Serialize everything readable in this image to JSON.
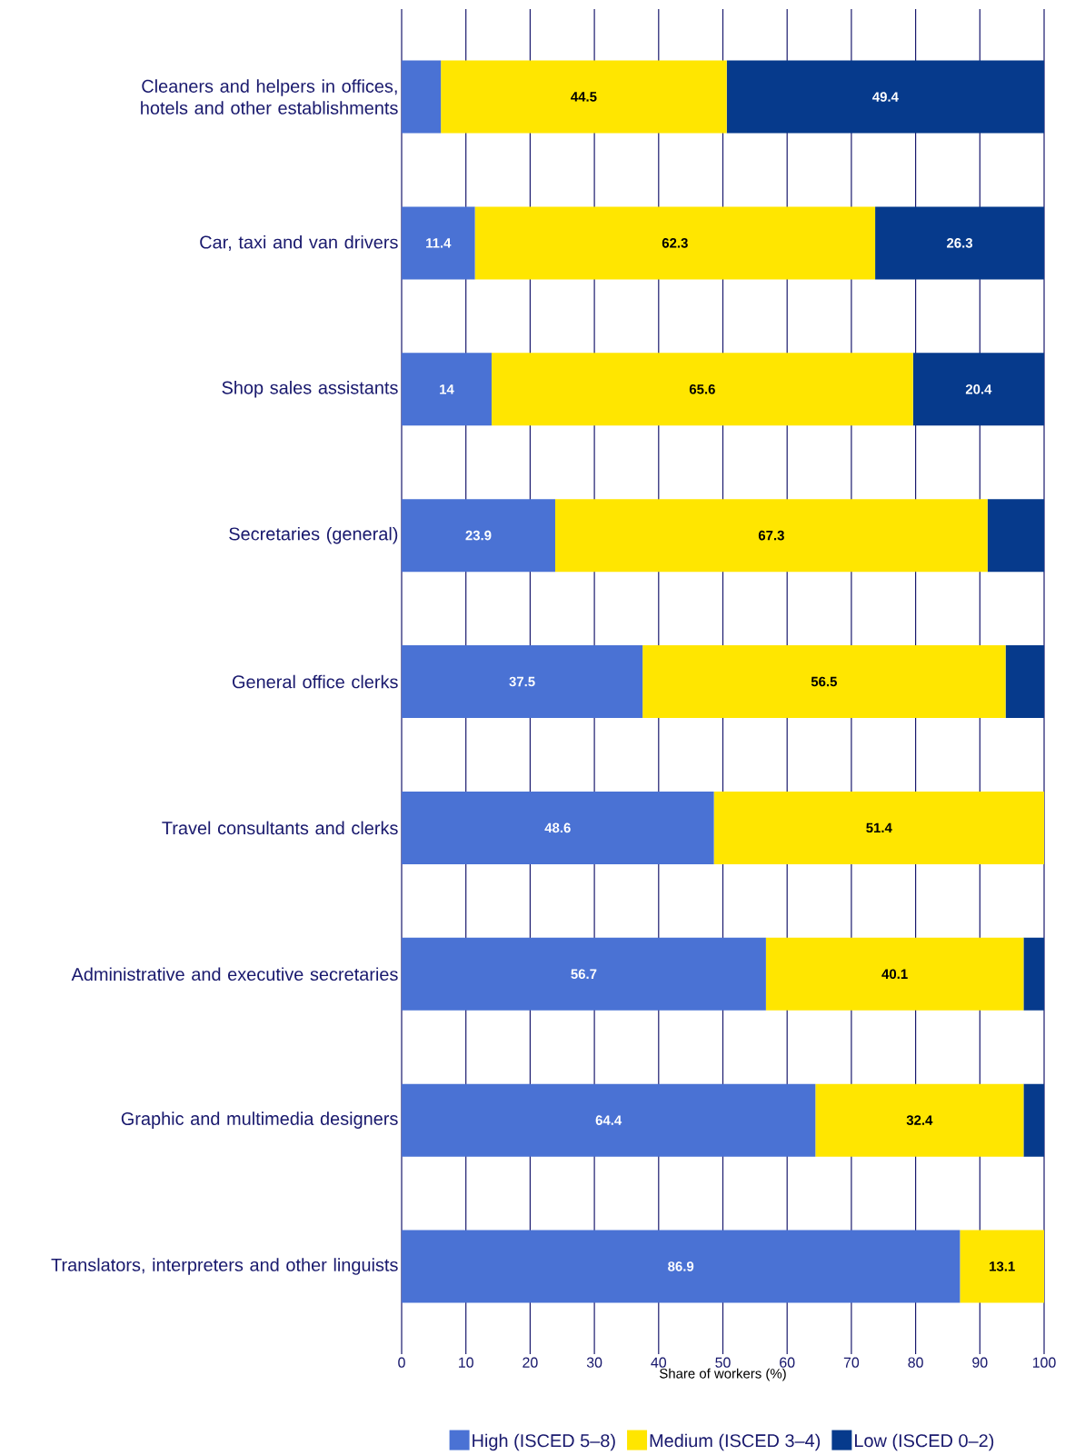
{
  "chart_data": {
    "type": "bar",
    "orientation": "horizontal",
    "stacked": true,
    "xlabel": "Share of workers (%)",
    "categories": [
      "Cleaners and helpers in offices, hotels and other establishments",
      "Car, taxi and van drivers",
      "Shop sales assistants",
      "Secretaries (general)",
      "General office clerks",
      "Travel consultants and clerks",
      "Administrative and executive secretaries",
      "Graphic and multimedia designers",
      "Translators, interpreters and other linguists"
    ],
    "series": [
      {
        "name": "High (ISCED 5–8)",
        "color": "#4a72d4",
        "values": [
          6.1,
          11.4,
          14,
          23.9,
          37.5,
          48.6,
          56.7,
          64.4,
          86.9
        ],
        "value_labels": [
          null,
          "11.4",
          "14",
          "23.9",
          "37.5",
          "48.6",
          "56.7",
          "64.4",
          "86.9"
        ]
      },
      {
        "name": "Medium (ISCED 3–4)",
        "color": "#ffe600",
        "values": [
          44.5,
          62.3,
          65.6,
          67.3,
          56.5,
          51.4,
          40.1,
          32.4,
          13.1
        ],
        "value_labels": [
          "44.5",
          "62.3",
          "65.6",
          "67.3",
          "56.5",
          "51.4",
          "40.1",
          "32.4",
          "13.1"
        ]
      },
      {
        "name": "Low (ISCED 0–2)",
        "color": "#063a8c",
        "values": [
          49.4,
          26.3,
          20.4,
          8.8,
          6.0,
          null,
          3.2,
          3.2,
          null
        ],
        "value_labels": [
          "49.4",
          "26.3",
          "20.4",
          null,
          null,
          null,
          null,
          null,
          null
        ]
      }
    ],
    "xlim": [
      0,
      100
    ],
    "xticks": [
      0,
      10,
      20,
      30,
      40,
      50,
      60,
      70,
      80,
      90,
      100
    ],
    "grid": "x",
    "legend": "bottom"
  }
}
